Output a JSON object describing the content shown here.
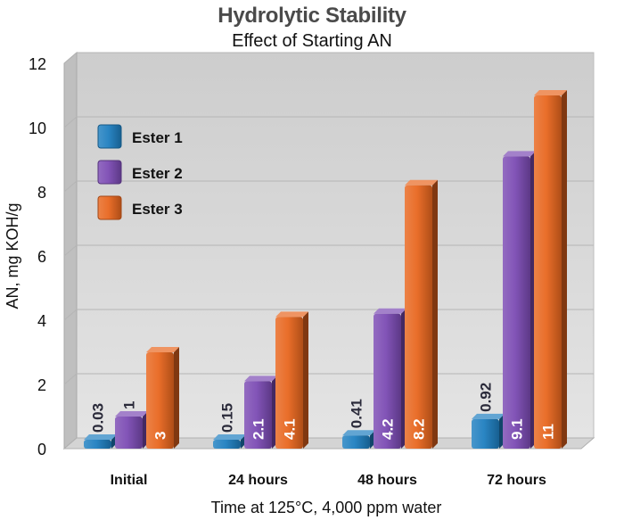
{
  "chart_data": {
    "type": "bar",
    "title": "Hydrolytic Stability",
    "subtitle": "Effect of Starting AN",
    "xlabel": "Time at 125°C, 4,000 ppm water",
    "ylabel": "AN, mg KOH/g",
    "categories": [
      "Initial",
      "24 hours",
      "48 hours",
      "72 hours"
    ],
    "series": [
      {
        "name": "Ester 1",
        "values": [
          0.03,
          0.15,
          0.41,
          0.92
        ],
        "labels": [
          "0.03",
          "0.15",
          "0.41",
          "0.92"
        ],
        "color": "#1f7fc0"
      },
      {
        "name": "Ester 2",
        "values": [
          1,
          2.1,
          4.2,
          9.1
        ],
        "labels": [
          "1",
          "2.1",
          "4.2",
          "9.1"
        ],
        "color": "#7b4bb3"
      },
      {
        "name": "Ester 3",
        "values": [
          3,
          4.1,
          8.2,
          11
        ],
        "labels": [
          "3",
          "4.1",
          "8.2",
          "11"
        ],
        "color": "#e8661f"
      }
    ],
    "ylim": [
      0,
      12
    ],
    "yticks": [
      "0",
      "2",
      "4",
      "6",
      "8",
      "10",
      "12"
    ],
    "grid": true,
    "legend_position": "top-left"
  }
}
